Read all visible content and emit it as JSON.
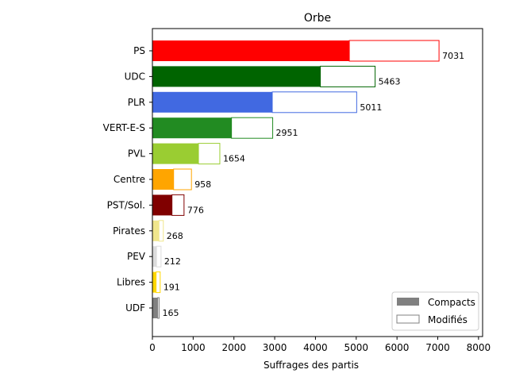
{
  "chart_data": {
    "type": "bar",
    "orientation": "horizontal",
    "stacked": true,
    "title": "Orbe",
    "xlabel": "Suffrages des partis",
    "ylabel": "",
    "xlim": [
      0,
      8100
    ],
    "xticks": [
      0,
      1000,
      2000,
      3000,
      4000,
      5000,
      6000,
      7000,
      8000
    ],
    "grid": false,
    "legend": {
      "position": "bottom-right",
      "entries": [
        {
          "label": "Compacts",
          "style": "filled",
          "color": "#808080"
        },
        {
          "label": "Modifiés",
          "style": "outline",
          "color": "#808080"
        }
      ]
    },
    "categories": [
      "PS",
      "UDC",
      "PLR",
      "VERT-E-S",
      "PVL",
      "Centre",
      "PST/Sol.",
      "Pirates",
      "PEV",
      "Libres",
      "UDF"
    ],
    "totals": [
      7031,
      5463,
      5011,
      2951,
      1654,
      958,
      776,
      268,
      212,
      191,
      165
    ],
    "series": [
      {
        "name": "Compacts",
        "values": [
          4830,
          4120,
          2940,
          1940,
          1130,
          520,
          480,
          160,
          100,
          90,
          130
        ]
      },
      {
        "name": "Modifiés",
        "values": [
          2201,
          1343,
          2071,
          1011,
          524,
          438,
          296,
          108,
          112,
          101,
          35
        ]
      }
    ],
    "colors": [
      "#ff0000",
      "#006400",
      "#4169e1",
      "#228b22",
      "#9acd32",
      "#ffa500",
      "#800000",
      "#f0e68c",
      "#dcdcdc",
      "#ffd700",
      "#808080"
    ]
  }
}
